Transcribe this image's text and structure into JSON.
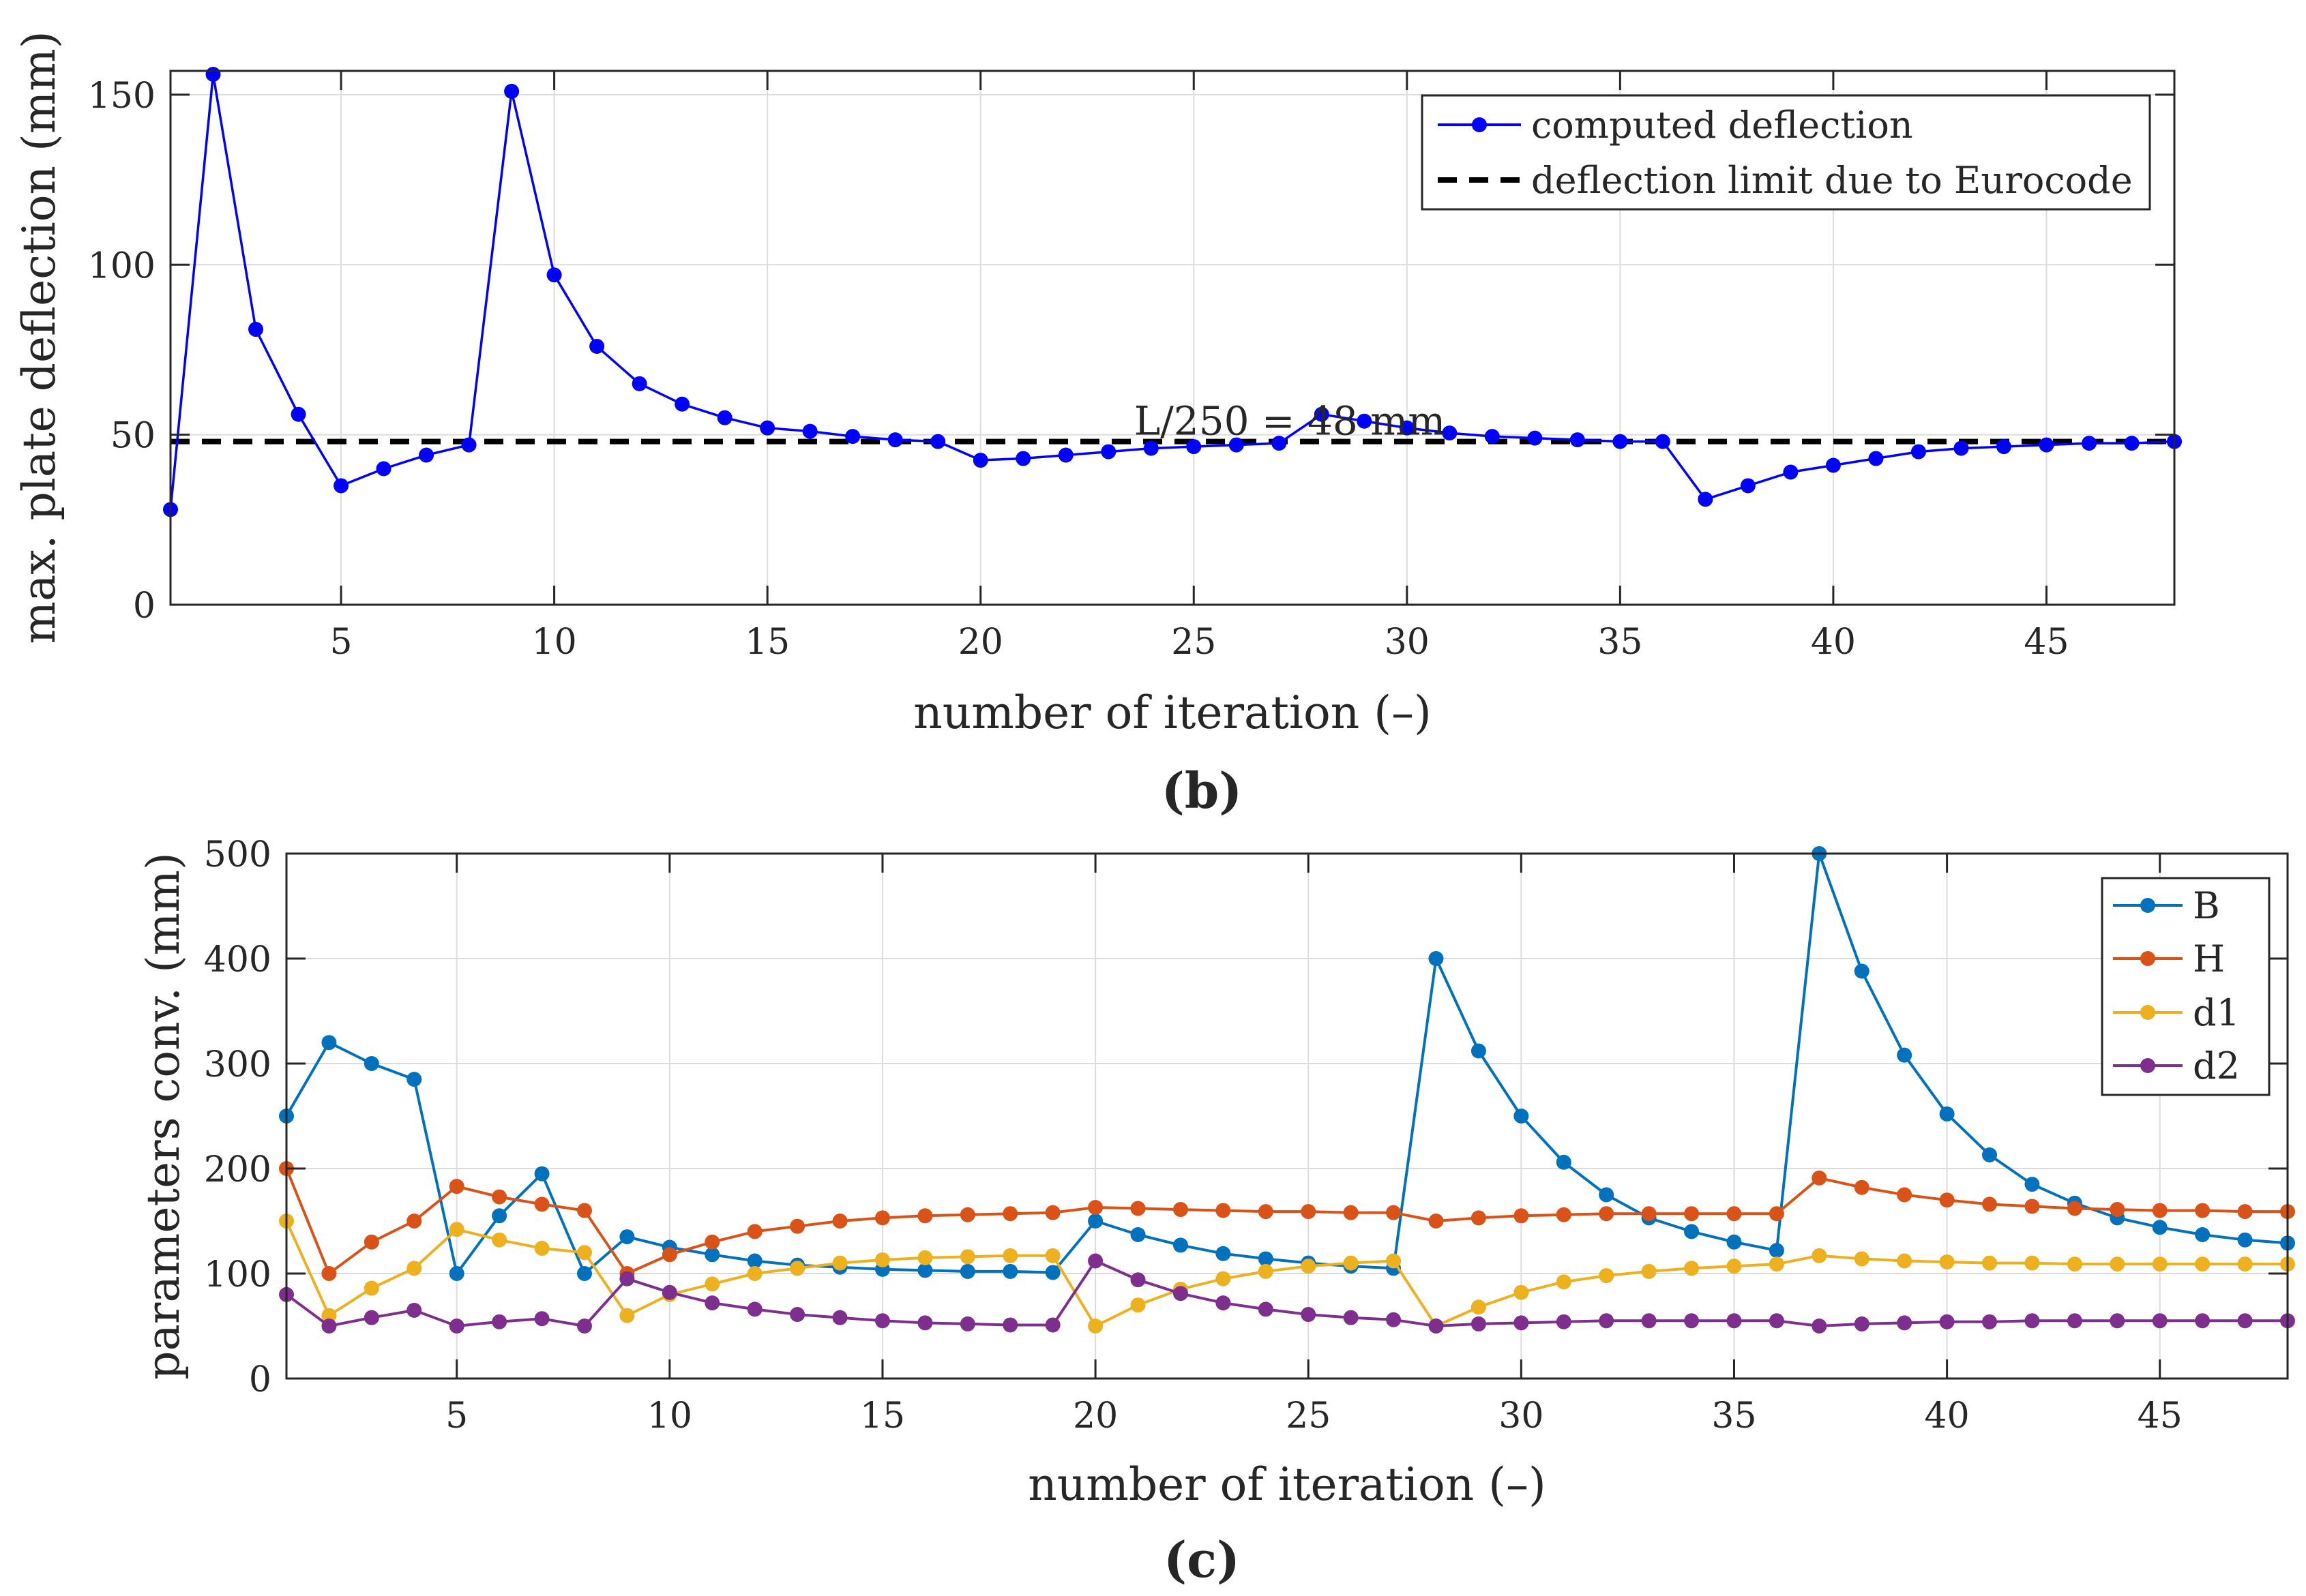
{
  "captions": {
    "b": "(b)",
    "c": "(c)"
  },
  "chart_data": [
    {
      "type": "line",
      "id": "b",
      "xlabel": "number of iteration (–)",
      "ylabel": "max. plate deflection (mm)",
      "xlim": [
        1,
        48
      ],
      "ylim": [
        0,
        157
      ],
      "xticks": [
        5,
        10,
        15,
        20,
        25,
        30,
        35,
        40,
        45
      ],
      "yticks": [
        0,
        50,
        100,
        150
      ],
      "grid": true,
      "legend_position": "top-right",
      "x": [
        1,
        2,
        3,
        4,
        5,
        6,
        7,
        8,
        9,
        10,
        11,
        12,
        13,
        14,
        15,
        16,
        17,
        18,
        19,
        20,
        21,
        22,
        23,
        24,
        25,
        26,
        27,
        28,
        29,
        30,
        31,
        32,
        33,
        34,
        35,
        36,
        37,
        38,
        39,
        40,
        41,
        42,
        43,
        44,
        45,
        46,
        47,
        48
      ],
      "series": [
        {
          "name": "computed deflection",
          "color": "#0000ff",
          "marker": true,
          "values": [
            28,
            156,
            81,
            56,
            35,
            40,
            44,
            47,
            151,
            97,
            76,
            65,
            59,
            55,
            52,
            51,
            49.5,
            48.5,
            48,
            42.5,
            43,
            44,
            45,
            46,
            46.5,
            47,
            47.5,
            56,
            54,
            52,
            50.5,
            49.5,
            49,
            48.5,
            48,
            48,
            31,
            35,
            39,
            41,
            43,
            45,
            46,
            46.5,
            47,
            47.5,
            47.5,
            48
          ]
        }
      ],
      "reference_lines": [
        {
          "name": "deflection limit due to Eurocode",
          "y": 48,
          "color": "#000000",
          "dashed": true
        }
      ],
      "annotations": [
        {
          "text": "L/250 = 48 mm",
          "x": 24,
          "y": 52
        }
      ]
    },
    {
      "type": "line",
      "id": "c",
      "xlabel": "number of iteration (–)",
      "ylabel": "parameters conv. (mm)",
      "xlim": [
        1,
        48
      ],
      "ylim": [
        0,
        500
      ],
      "xticks": [
        5,
        10,
        15,
        20,
        25,
        30,
        35,
        40,
        45
      ],
      "yticks": [
        0,
        100,
        200,
        300,
        400,
        500
      ],
      "grid": true,
      "legend_position": "top-right",
      "x": [
        1,
        2,
        3,
        4,
        5,
        6,
        7,
        8,
        9,
        10,
        11,
        12,
        13,
        14,
        15,
        16,
        17,
        18,
        19,
        20,
        21,
        22,
        23,
        24,
        25,
        26,
        27,
        28,
        29,
        30,
        31,
        32,
        33,
        34,
        35,
        36,
        37,
        38,
        39,
        40,
        41,
        42,
        43,
        44,
        45,
        46,
        47,
        48
      ],
      "series": [
        {
          "name": "B",
          "color": "#0072bd",
          "values": [
            250,
            320,
            300,
            285,
            100,
            155,
            195,
            100,
            135,
            125,
            118,
            112,
            108,
            106,
            104,
            103,
            102,
            102,
            101,
            150,
            137,
            127,
            119,
            114,
            110,
            107,
            105,
            400,
            312,
            250,
            206,
            175,
            153,
            140,
            130,
            122,
            500,
            388,
            308,
            252,
            213,
            185,
            167,
            153,
            144,
            137,
            132,
            129
          ]
        },
        {
          "name": "H",
          "color": "#d95319",
          "values": [
            200,
            100,
            130,
            150,
            183,
            173,
            166,
            160,
            100,
            118,
            130,
            140,
            145,
            150,
            153,
            155,
            156,
            157,
            158,
            163,
            162,
            161,
            160,
            159,
            159,
            158,
            158,
            150,
            153,
            155,
            156,
            157,
            157,
            157,
            157,
            157,
            191,
            182,
            175,
            170,
            166,
            164,
            162,
            161,
            160,
            160,
            159,
            159
          ]
        },
        {
          "name": "d1",
          "color": "#edb120",
          "values": [
            150,
            60,
            86,
            105,
            142,
            132,
            124,
            120,
            60,
            80,
            90,
            100,
            105,
            110,
            113,
            115,
            116,
            117,
            117,
            50,
            70,
            85,
            95,
            102,
            107,
            110,
            112,
            50,
            68,
            82,
            92,
            98,
            102,
            105,
            107,
            109,
            117,
            114,
            112,
            111,
            110,
            110,
            109,
            109,
            109,
            109,
            109,
            109
          ]
        },
        {
          "name": "d2",
          "color": "#7e2f8e",
          "values": [
            80,
            50,
            58,
            65,
            50,
            54,
            57,
            50,
            95,
            82,
            72,
            66,
            61,
            58,
            55,
            53,
            52,
            51,
            51,
            112,
            94,
            81,
            72,
            66,
            61,
            58,
            56,
            50,
            52,
            53,
            54,
            55,
            55,
            55,
            55,
            55,
            50,
            52,
            53,
            54,
            54,
            55,
            55,
            55,
            55,
            55,
            55,
            55
          ]
        }
      ]
    }
  ]
}
